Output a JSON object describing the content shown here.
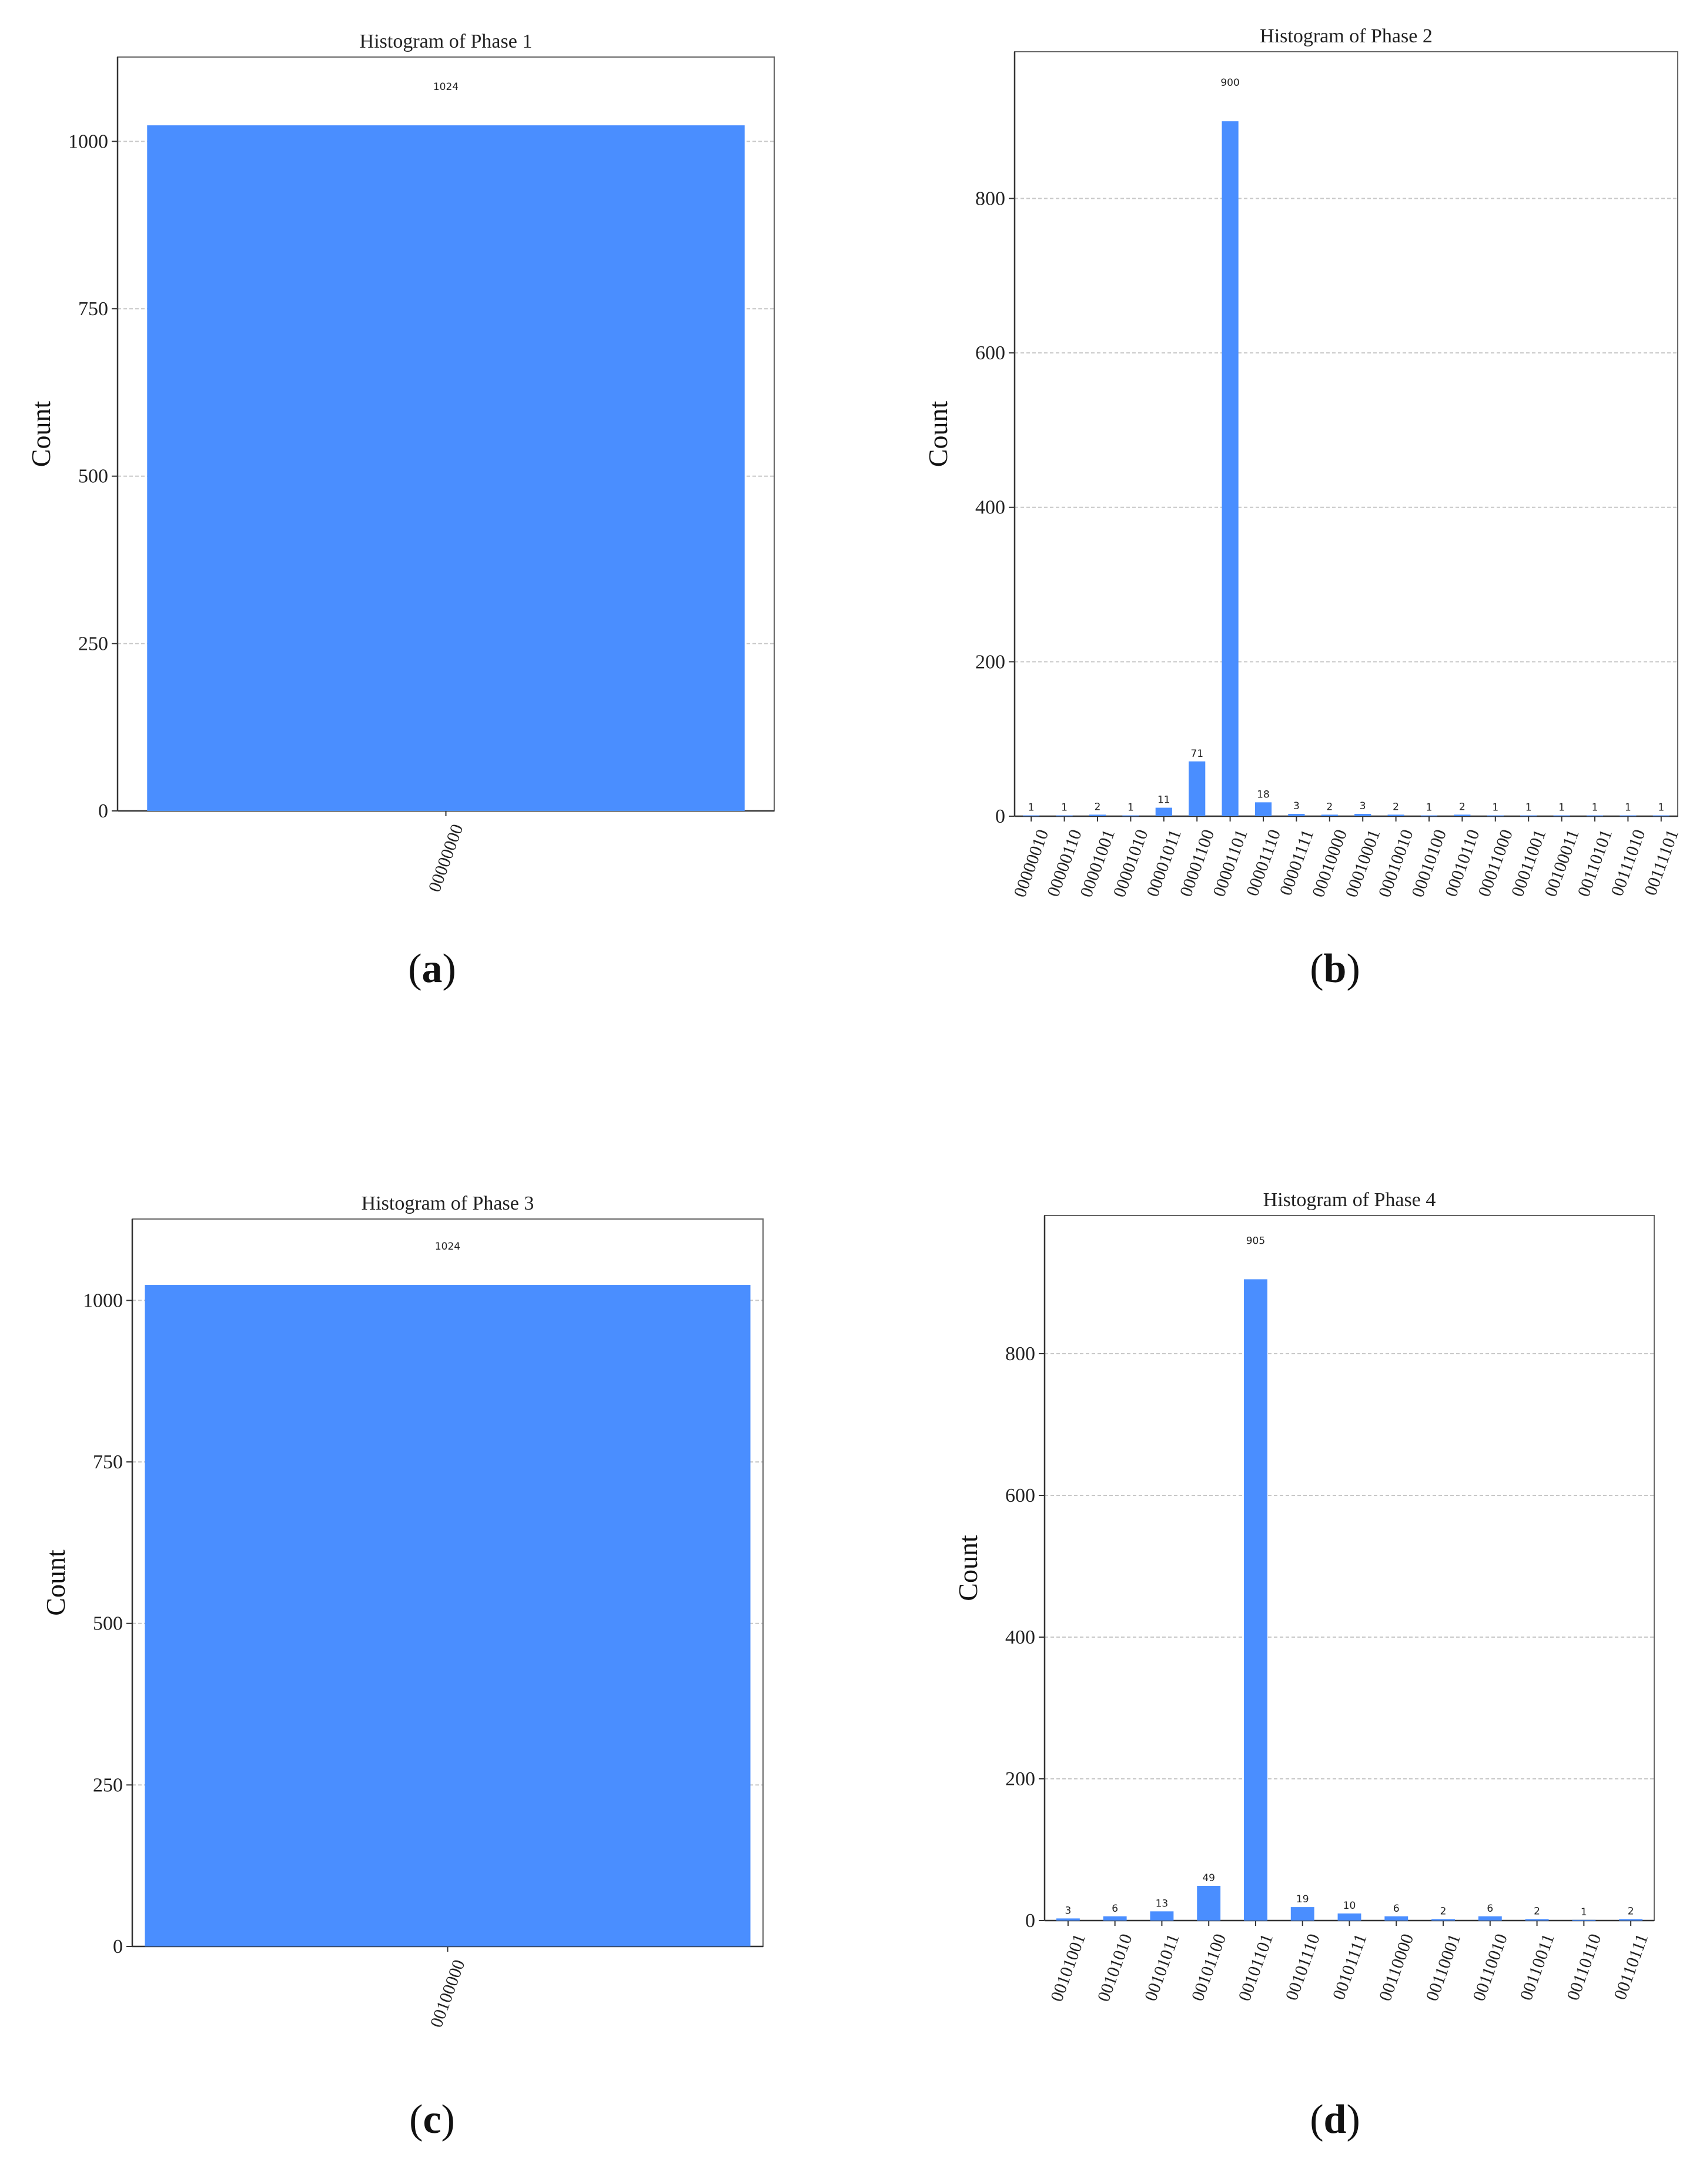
{
  "chart_data": [
    {
      "type": "bar",
      "title": "Histogram of Phase 1",
      "ylabel": "Count",
      "xlabel": "",
      "ylim": [
        0,
        1126
      ],
      "yticks": [
        0,
        250,
        500,
        750,
        1000
      ],
      "grid": true,
      "bar_color": "#4a8eff",
      "categories": [
        "00000000"
      ],
      "values": [
        1024
      ],
      "data_labels": [
        "1024"
      ],
      "caption_letter": "a"
    },
    {
      "type": "bar",
      "title": "Histogram of Phase 2",
      "ylabel": "Count",
      "xlabel": "",
      "ylim": [
        0,
        990
      ],
      "yticks": [
        0,
        200,
        400,
        600,
        800
      ],
      "grid": true,
      "bar_color": "#4a8eff",
      "categories": [
        "00000010",
        "00000110",
        "00001001",
        "00001010",
        "00001011",
        "00001100",
        "00001101",
        "00001110",
        "00001111",
        "00010000",
        "00010001",
        "00010010",
        "00010100",
        "00010110",
        "00011000",
        "00011001",
        "00100011",
        "00110101",
        "00111010",
        "00111101"
      ],
      "values": [
        1,
        1,
        2,
        1,
        11,
        71,
        900,
        18,
        3,
        2,
        3,
        2,
        1,
        2,
        1,
        1,
        1,
        1,
        1,
        1
      ],
      "data_labels": [
        "1",
        "1",
        "2",
        "1",
        "11",
        "71",
        "900",
        "18",
        "3",
        "2",
        "3",
        "2",
        "1",
        "2",
        "1",
        "1",
        "1",
        "1",
        "1",
        "1"
      ],
      "caption_letter": "b"
    },
    {
      "type": "bar",
      "title": "Histogram of Phase 3",
      "ylabel": "Count",
      "xlabel": "",
      "ylim": [
        0,
        1126
      ],
      "yticks": [
        0,
        250,
        500,
        750,
        1000
      ],
      "grid": true,
      "bar_color": "#4a8eff",
      "categories": [
        "00100000"
      ],
      "values": [
        1024
      ],
      "data_labels": [
        "1024"
      ],
      "caption_letter": "c"
    },
    {
      "type": "bar",
      "title": "Histogram of Phase 4",
      "ylabel": "Count",
      "xlabel": "",
      "ylim": [
        0,
        995
      ],
      "yticks": [
        0,
        200,
        400,
        600,
        800
      ],
      "grid": true,
      "bar_color": "#4a8eff",
      "categories": [
        "00101001",
        "00101010",
        "00101011",
        "00101100",
        "00101101",
        "00101110",
        "00101111",
        "00110000",
        "00110001",
        "00110010",
        "00110011",
        "00110110",
        "00110111"
      ],
      "values": [
        3,
        6,
        13,
        49,
        905,
        19,
        10,
        6,
        2,
        6,
        2,
        1,
        2
      ],
      "data_labels": [
        "3",
        "6",
        "13",
        "49",
        "905",
        "19",
        "10",
        "6",
        "2",
        "6",
        "2",
        "1",
        "2"
      ],
      "caption_letter": "d"
    }
  ]
}
